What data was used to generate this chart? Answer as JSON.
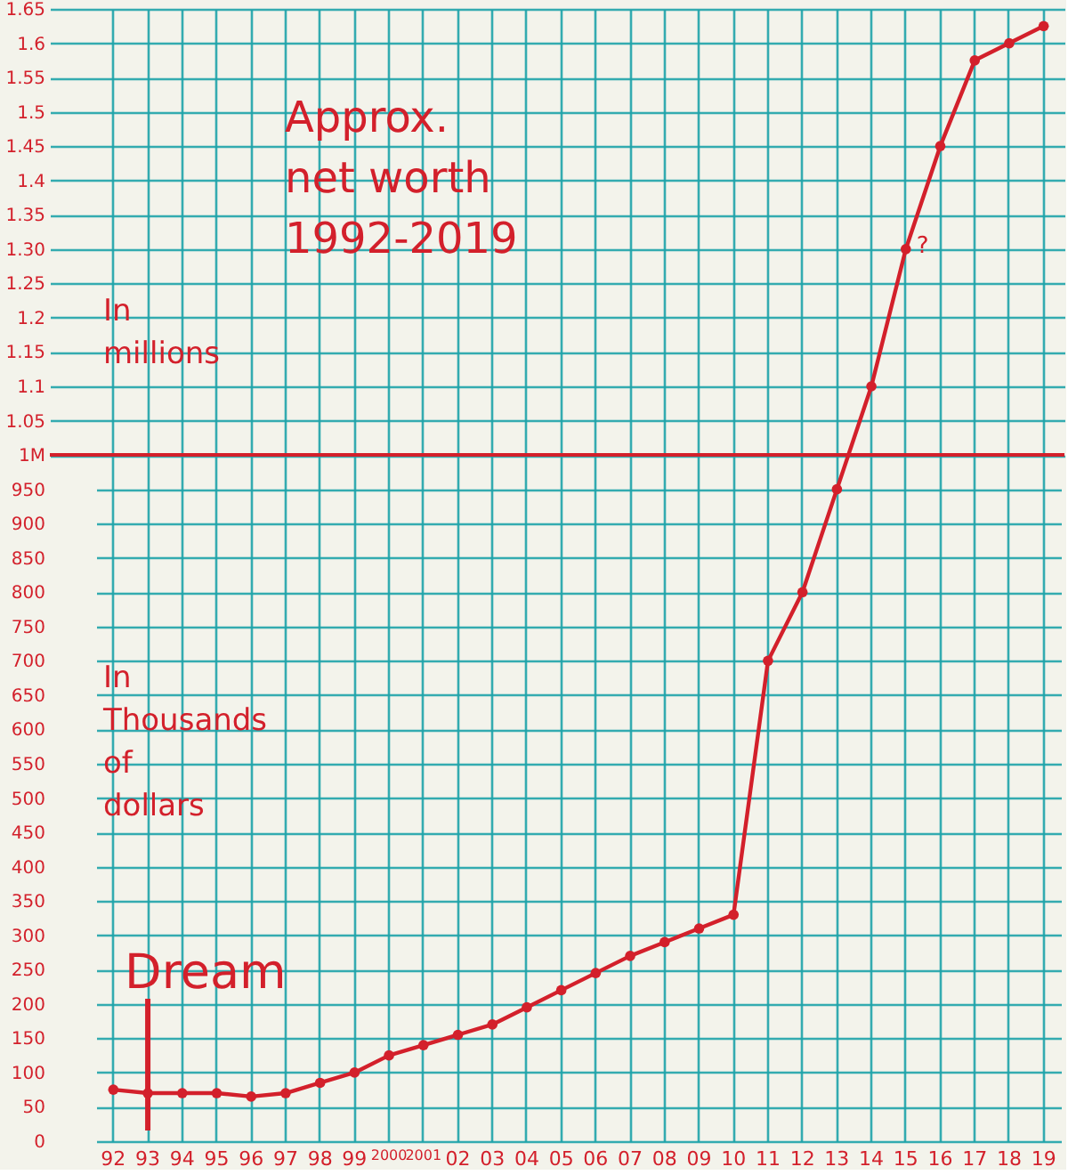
{
  "chart_data": {
    "type": "line",
    "title": "Approx. net worth 1992-2019",
    "categories": [
      "92",
      "93",
      "94",
      "95",
      "96",
      "97",
      "98",
      "99",
      "2000",
      "2001",
      "02",
      "03",
      "04",
      "05",
      "06",
      "07",
      "08",
      "09",
      "10",
      "11",
      "12",
      "13",
      "14",
      "15",
      "16",
      "17",
      "18",
      "19"
    ],
    "series": [
      {
        "color": "#d3202b",
        "values": [
          75,
          70,
          70,
          70,
          65,
          70,
          85,
          100,
          125,
          140,
          155,
          170,
          195,
          220,
          245,
          270,
          290,
          310,
          330,
          700,
          800,
          950,
          1100,
          1300,
          1450,
          1575,
          1600,
          1625
        ]
      }
    ],
    "ylim": [
      0,
      1650
    ],
    "yticks": [
      0,
      50,
      100,
      150,
      200,
      250,
      300,
      350,
      400,
      450,
      500,
      550,
      600,
      650,
      700,
      750,
      800,
      850,
      900,
      950
    ],
    "y2lim": [
      0,
      1.65
    ],
    "y2ticks": [
      {
        "value": 1,
        "label": "1M"
      },
      1.05,
      1.1,
      1.15,
      1.2,
      1.25,
      {
        "value": 1.3,
        "label": "1.30"
      },
      1.35,
      1.4,
      1.45,
      1.5,
      1.55,
      1.6,
      1.65
    ],
    "grid": true,
    "marker": "circle",
    "line_style": "solid",
    "annotations": [
      "In millions",
      "In Thousands of dollars",
      {
        "text": "?",
        "x": "15",
        "y": 1300
      }
    ],
    "ref_lines": [
      {
        "axis": "y2",
        "value": 1,
        "color": "#d3202b"
      },
      {
        "axis": "x",
        "value": "93",
        "label": "Dream",
        "color": "#d3202b"
      }
    ]
  }
}
